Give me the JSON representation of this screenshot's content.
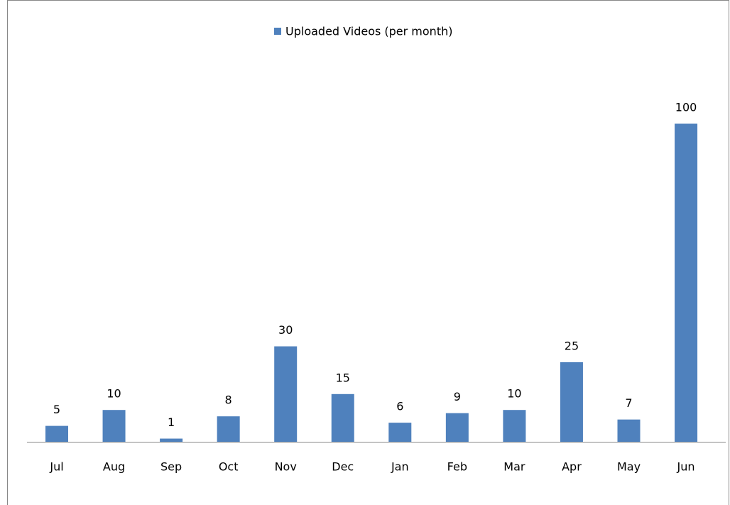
{
  "chart_data": {
    "type": "bar",
    "legend": "Uploaded Videos (per month)",
    "categories": [
      "Jul",
      "Aug",
      "Sep",
      "Oct",
      "Nov",
      "Dec",
      "Jan",
      "Feb",
      "Mar",
      "Apr",
      "May",
      "Jun"
    ],
    "values": [
      5,
      10,
      1,
      8,
      30,
      15,
      6,
      9,
      10,
      25,
      7,
      100
    ],
    "color": "#4f81bd"
  }
}
